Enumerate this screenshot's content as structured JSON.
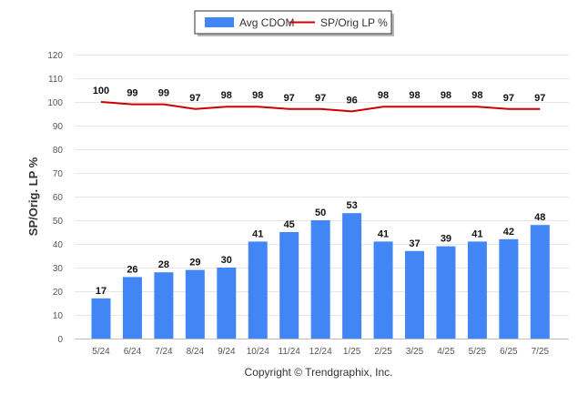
{
  "chart_data": {
    "type": "bar",
    "categories": [
      "5/24",
      "6/24",
      "7/24",
      "8/24",
      "9/24",
      "10/24",
      "11/24",
      "12/24",
      "1/25",
      "2/25",
      "3/25",
      "4/25",
      "5/25",
      "6/25",
      "7/25"
    ],
    "series": [
      {
        "name": "Avg CDOM",
        "type": "bar",
        "color": "#4285f4",
        "values": [
          17,
          26,
          28,
          29,
          30,
          41,
          45,
          50,
          53,
          41,
          37,
          39,
          41,
          42,
          48
        ]
      },
      {
        "name": "SP/Orig LP %",
        "type": "line",
        "color": "#cc0000",
        "values": [
          100,
          99,
          99,
          97,
          98,
          98,
          97,
          97,
          96,
          98,
          98,
          98,
          98,
          97,
          97
        ]
      }
    ],
    "ylabel": "SP/Orig. LP %",
    "ylim": [
      0,
      120
    ],
    "yticks": [
      0,
      10,
      20,
      30,
      40,
      50,
      60,
      70,
      80,
      90,
      100,
      110,
      120
    ],
    "grid": true,
    "legend_position": "top-center"
  },
  "legend": {
    "items": [
      {
        "label": "Avg CDOM",
        "color": "#4285f4",
        "kind": "bar"
      },
      {
        "label": "SP/Orig LP %",
        "color": "#cc0000",
        "kind": "line"
      }
    ]
  },
  "footer": {
    "copyright": "Copyright © Trendgraphix, Inc."
  }
}
